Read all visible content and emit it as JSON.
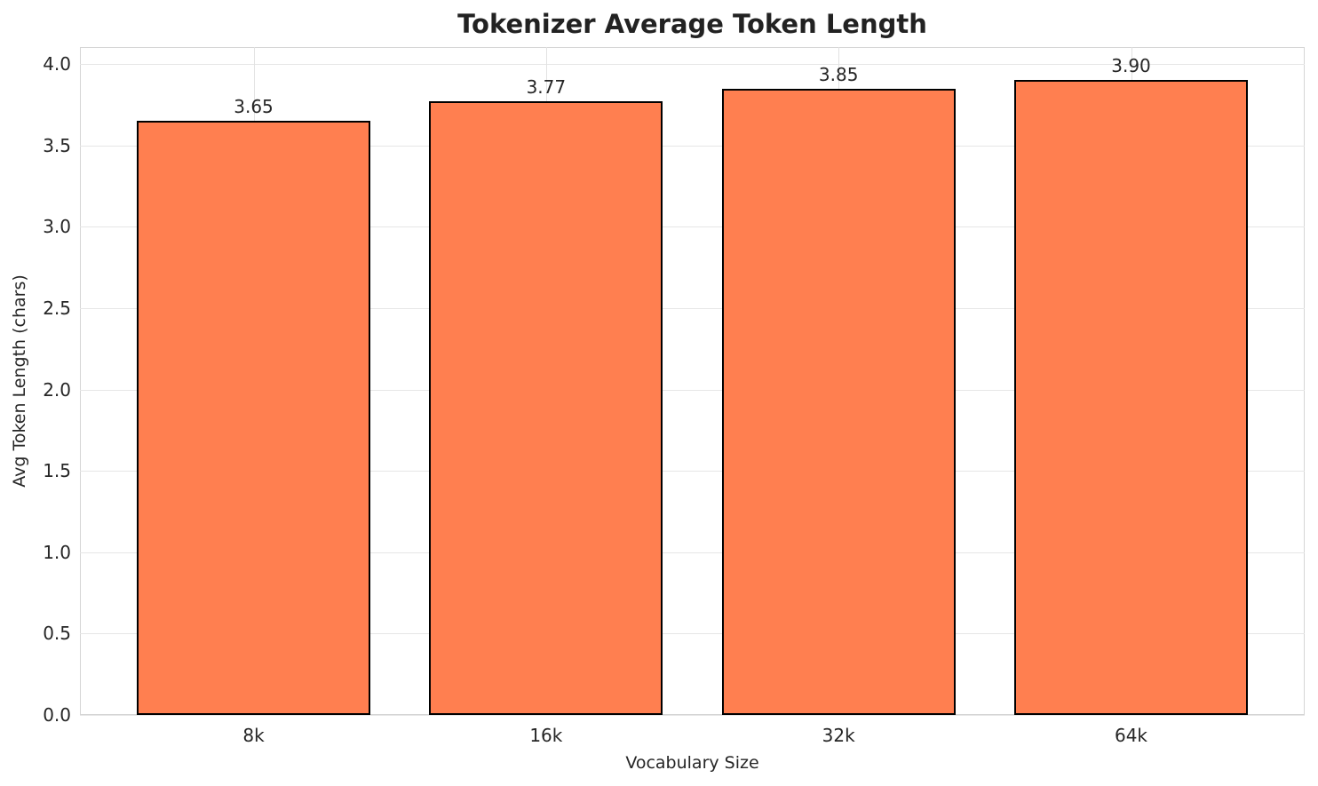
{
  "chart_data": {
    "type": "bar",
    "title": "Tokenizer Average Token Length",
    "xlabel": "Vocabulary Size",
    "ylabel": "Avg Token Length (chars)",
    "categories": [
      "8k",
      "16k",
      "32k",
      "64k"
    ],
    "values": [
      3.65,
      3.77,
      3.85,
      3.9
    ],
    "value_labels": [
      "3.65",
      "3.77",
      "3.85",
      "3.90"
    ],
    "yticks": [
      0.0,
      0.5,
      1.0,
      1.5,
      2.0,
      2.5,
      3.0,
      3.5,
      4.0
    ],
    "ytick_labels": [
      "0.0",
      "0.5",
      "1.0",
      "1.5",
      "2.0",
      "2.5",
      "3.0",
      "3.5",
      "4.0"
    ],
    "ylim": [
      0,
      4.104
    ],
    "grid": true,
    "legend": "none",
    "colors": {
      "bar_fill": "#FF7F50",
      "bar_edge": "#000000",
      "grid": "#e6e6e6",
      "spine": "#d5d5d5",
      "text": "#262626",
      "title": "#222222",
      "background": "#ffffff"
    }
  }
}
